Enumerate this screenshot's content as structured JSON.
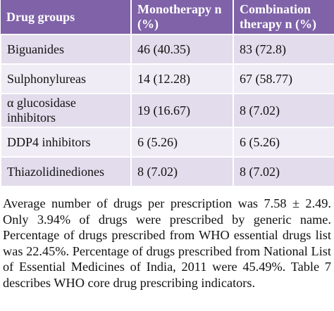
{
  "table": {
    "header": [
      "Drug groups",
      "Monotherapy n (%)",
      "Combination therapy n (%)"
    ],
    "rows": [
      [
        "Biguanides",
        "46 (40.35)",
        "83 (72.8)"
      ],
      [
        "Sulphonylureas",
        "14 (12.28)",
        "67 (58.77)"
      ],
      [
        "α glucosidase inhibitors",
        "19 (16.67)",
        "8 (7.02)"
      ],
      [
        "DDP4 inhibitors",
        "6 (5.26)",
        "6 (5.26)"
      ],
      [
        "Thiazolidinediones",
        "8 (7.02)",
        "8 (7.02)"
      ]
    ]
  },
  "paragraph": "Average number of drugs per prescription was 7.58 ± 2.49. Only 3.94% of drugs were prescribed by generic name. Percentage of drugs prescribed from WHO essential drugs list was 22.45%. Percentage of drugs prescribed from National List of Essential Medicines of India, 2011 were 45.49%. Table 7 describes WHO core drug prescribing indicators."
}
